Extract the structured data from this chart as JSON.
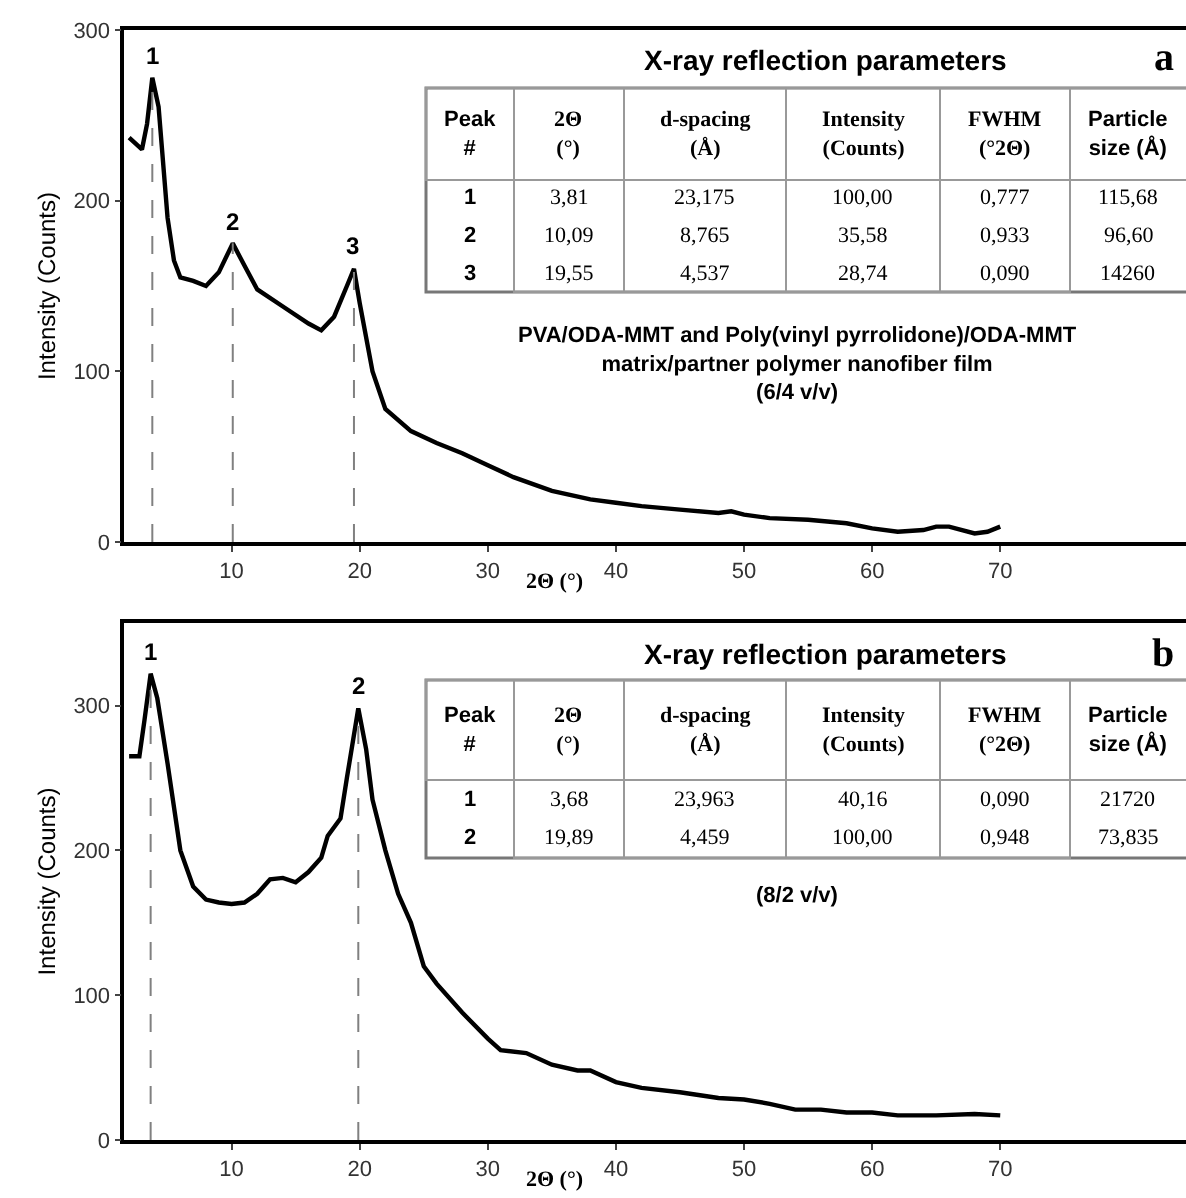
{
  "chart_data": [
    {
      "type": "line",
      "title": "a",
      "xlabel": "2Θ (°)",
      "ylabel": "Intensity (Counts)",
      "xlim": [
        1.6,
        84.5
      ],
      "xticks": [
        10,
        20,
        30,
        40,
        50,
        60,
        70
      ],
      "ylim": [
        0,
        300
      ],
      "yticks": [
        0,
        100,
        200,
        300
      ],
      "x": [
        2,
        3,
        3.4,
        3.81,
        4.3,
        5,
        5.5,
        6,
        7,
        8,
        9,
        10.09,
        11,
        12,
        14,
        16,
        17,
        18,
        19,
        19.55,
        20,
        21,
        22,
        24,
        26,
        28,
        30,
        32,
        35,
        38,
        40,
        42,
        45,
        48,
        49,
        50,
        52,
        55,
        58,
        60,
        62,
        64,
        65,
        66,
        68,
        69,
        70
      ],
      "series": [
        {
          "color": "#000000",
          "values": [
            237,
            230,
            245,
            272,
            255,
            190,
            165,
            155,
            153,
            150,
            158,
            175,
            162,
            148,
            138,
            128,
            124,
            132,
            150,
            160,
            140,
            100,
            78,
            65,
            58,
            52,
            45,
            38,
            30,
            25,
            23,
            21,
            19,
            17,
            18,
            16,
            14,
            13,
            11,
            8,
            6,
            7,
            9,
            9,
            5,
            6,
            9
          ]
        }
      ],
      "ref_lines": [
        {
          "axis": "x",
          "value": 3.81,
          "color": "#808080",
          "line_style": "dashed"
        },
        {
          "axis": "x",
          "value": 10.09,
          "color": "#808080",
          "line_style": "dashed"
        },
        {
          "axis": "x",
          "value": 19.55,
          "color": "#808080",
          "line_style": "dashed"
        }
      ],
      "annotations": [
        {
          "text": "1",
          "x": 3.81,
          "y": 272
        },
        {
          "text": "2",
          "x": 10.09,
          "y": 175
        },
        {
          "text": "3",
          "x": 19.55,
          "y": 160
        },
        "X-ray reflection parameters",
        "Peak\n#",
        "2Θ\n(°)",
        "d-spacing\n(Å)",
        "Intensity\n(Counts)",
        "FWHM\n(°2Θ)",
        "Particle\nsize (Å)",
        "1",
        "3,81",
        "23,175",
        "100,00",
        "0,777",
        "115,68",
        "2",
        "10,09",
        "8,765",
        "35,58",
        "0,933",
        "96,60",
        "3",
        "19,55",
        "4,537",
        "28,74",
        "0,090",
        "14260",
        "PVA/ODA-MMT and Poly(vinyl pyrrolidone)/ODA-MMT\nmatrix/partner polymer nanofiber film\n(6/4 v/v)"
      ]
    },
    {
      "type": "line",
      "title": "b",
      "xlabel": "2Θ (°)",
      "ylabel": "Intensity (Counts)",
      "xlim": [
        1.6,
        84.5
      ],
      "xticks": [
        10,
        20,
        30,
        40,
        50,
        60,
        70
      ],
      "ylim": [
        0,
        357
      ],
      "yticks": [
        0,
        100,
        200,
        300
      ],
      "x": [
        2,
        2.8,
        3.2,
        3.68,
        4.2,
        5,
        6,
        7,
        8,
        9,
        10,
        11,
        12,
        13,
        14,
        15,
        16,
        17,
        17.5,
        18.5,
        19,
        19.89,
        20.5,
        21,
        22,
        23,
        24,
        25,
        26,
        28,
        30,
        31,
        33,
        35,
        37,
        38,
        40,
        42,
        45,
        48,
        50,
        52,
        54,
        56,
        58,
        60,
        62,
        65,
        68,
        70
      ],
      "series": [
        {
          "color": "#000000",
          "values": [
            265,
            265,
            290,
            322,
            305,
            260,
            200,
            175,
            166,
            164,
            163,
            164,
            170,
            180,
            181,
            178,
            185,
            195,
            210,
            222,
            250,
            298,
            270,
            235,
            200,
            170,
            150,
            120,
            108,
            88,
            70,
            62,
            60,
            52,
            48,
            48,
            40,
            36,
            33,
            29,
            28,
            25,
            21,
            21,
            19,
            19,
            17,
            17,
            18,
            17
          ]
        }
      ],
      "ref_lines": [
        {
          "axis": "x",
          "value": 3.68,
          "color": "#808080",
          "line_style": "dashed"
        },
        {
          "axis": "x",
          "value": 19.89,
          "color": "#808080",
          "line_style": "dashed"
        }
      ],
      "annotations": [
        {
          "text": "1",
          "x": 3.68,
          "y": 322
        },
        {
          "text": "2",
          "x": 19.89,
          "y": 298
        },
        "X-ray reflection parameters",
        "Peak\n#",
        "2Θ\n(°)",
        "d-spacing\n(Å)",
        "Intensity\n(Counts)",
        "FWHM\n(°2Θ)",
        "Particle\nsize (Å)",
        "1",
        "3,68",
        "23,963",
        "40,16",
        "0,090",
        "21720",
        "2",
        "19,89",
        "4,459",
        "100,00",
        "0,948",
        "73,835",
        "(8/2 v/v)"
      ]
    }
  ]
}
